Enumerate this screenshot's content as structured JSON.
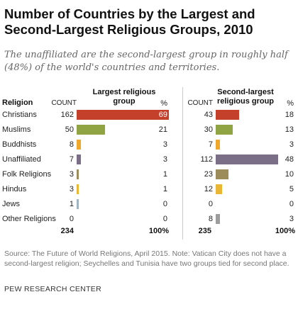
{
  "title": "Number of Countries by the Largest and Second-Largest Religious Groups, 2010",
  "subtitle": "The unaffiliated are the second-largest group in roughly half (48%) of the world's countries and territories.",
  "headers": {
    "religion": "Religion",
    "count1": "COUNT",
    "largest": "Largest religious group",
    "pct1": "%",
    "count2": "COUNT",
    "second": "Second-largest religious group",
    "pct2": "%"
  },
  "chart_data": {
    "type": "bar",
    "categories": [
      "Christians",
      "Muslims",
      "Buddhists",
      "Unaffiliated",
      "Folk Religions",
      "Hindus",
      "Jews",
      "Other Religions"
    ],
    "colors": [
      "#c5402b",
      "#90a443",
      "#f0a82c",
      "#7b6f87",
      "#9c8c5c",
      "#e9b735",
      "#a2b4c1",
      "#9d9d9d"
    ],
    "largest": {
      "name": "Largest religious group",
      "counts": [
        162,
        50,
        8,
        7,
        3,
        3,
        1,
        0
      ],
      "percents": [
        69,
        21,
        3,
        3,
        1,
        1,
        0,
        0
      ],
      "total_count": "234",
      "total_pct": "100%"
    },
    "second_largest": {
      "name": "Second-largest religious group",
      "counts": [
        43,
        30,
        7,
        112,
        23,
        12,
        0,
        8
      ],
      "percents": [
        18,
        13,
        3,
        48,
        10,
        5,
        0,
        3
      ],
      "total_count": "235",
      "total_pct": "100%"
    }
  },
  "source": "Source: The Future of World Religions, April 2015. Note: Vatican City does not have a second-largest religion; Seychelles and Tunisia have two groups tied for second place.",
  "brand": "PEW RESEARCH CENTER"
}
